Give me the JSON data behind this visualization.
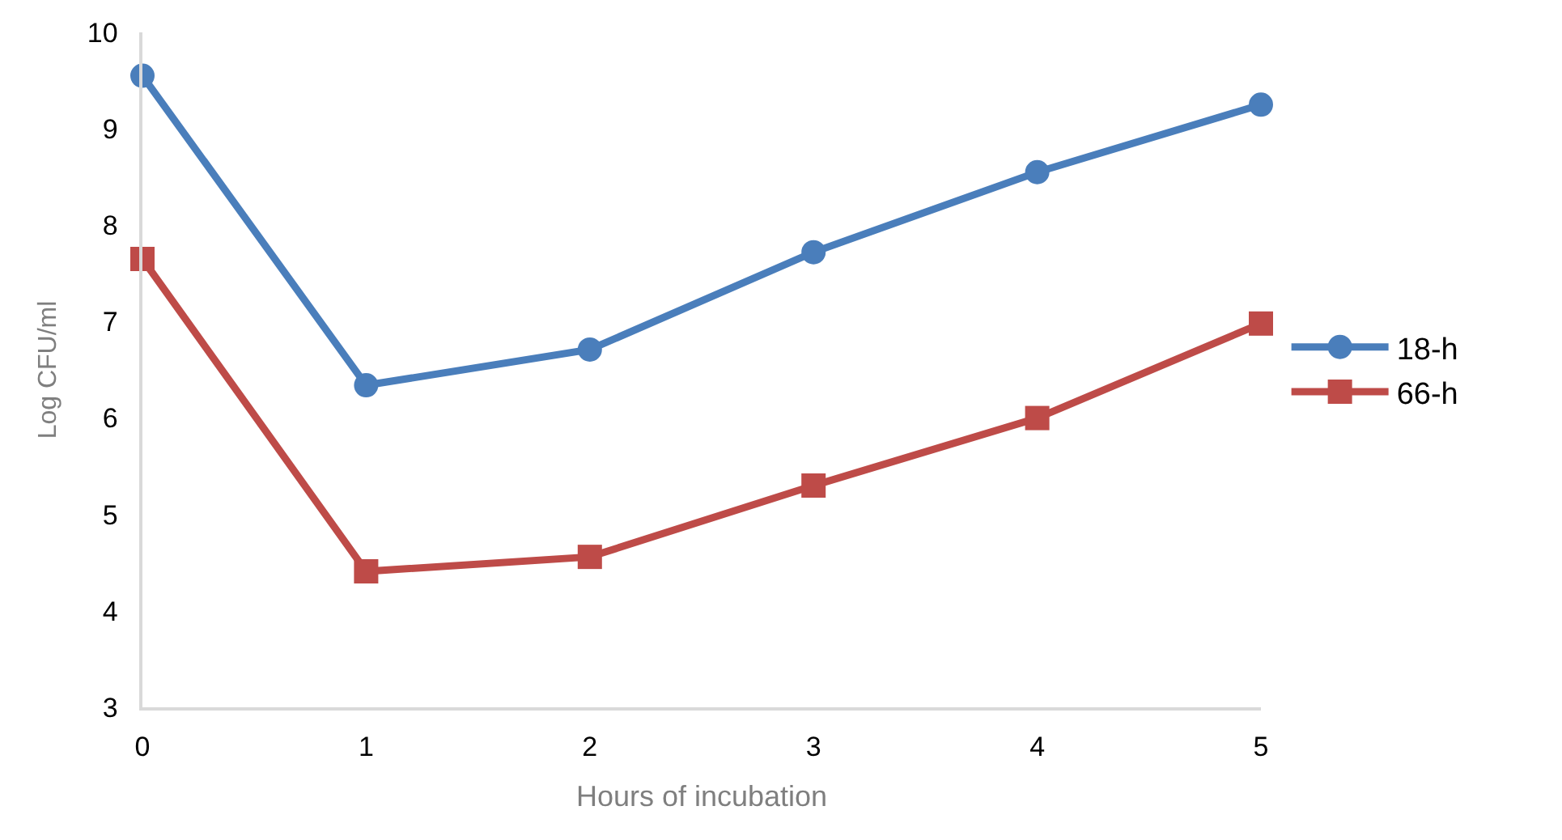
{
  "chart_data": {
    "type": "line",
    "xlabel": "Hours of incubation",
    "ylabel": "Log CFU/ml",
    "x": [
      0,
      1,
      2,
      3,
      4,
      5
    ],
    "series": [
      {
        "name": "18-h",
        "color": "#4a7ebb",
        "marker": "circle",
        "values": [
          9.55,
          6.34,
          6.71,
          7.72,
          8.55,
          9.25
        ]
      },
      {
        "name": "66-h",
        "color": "#be4b48",
        "marker": "square",
        "values": [
          7.65,
          4.41,
          4.56,
          5.3,
          6.0,
          6.98
        ]
      }
    ],
    "xlim": [
      0,
      5
    ],
    "xticks": [
      0,
      1,
      2,
      3,
      4,
      5
    ],
    "ylim": [
      3,
      10
    ],
    "yticks": [
      3,
      4,
      5,
      6,
      7,
      8,
      9,
      10
    ],
    "legend": "right",
    "line_style": "solid"
  }
}
